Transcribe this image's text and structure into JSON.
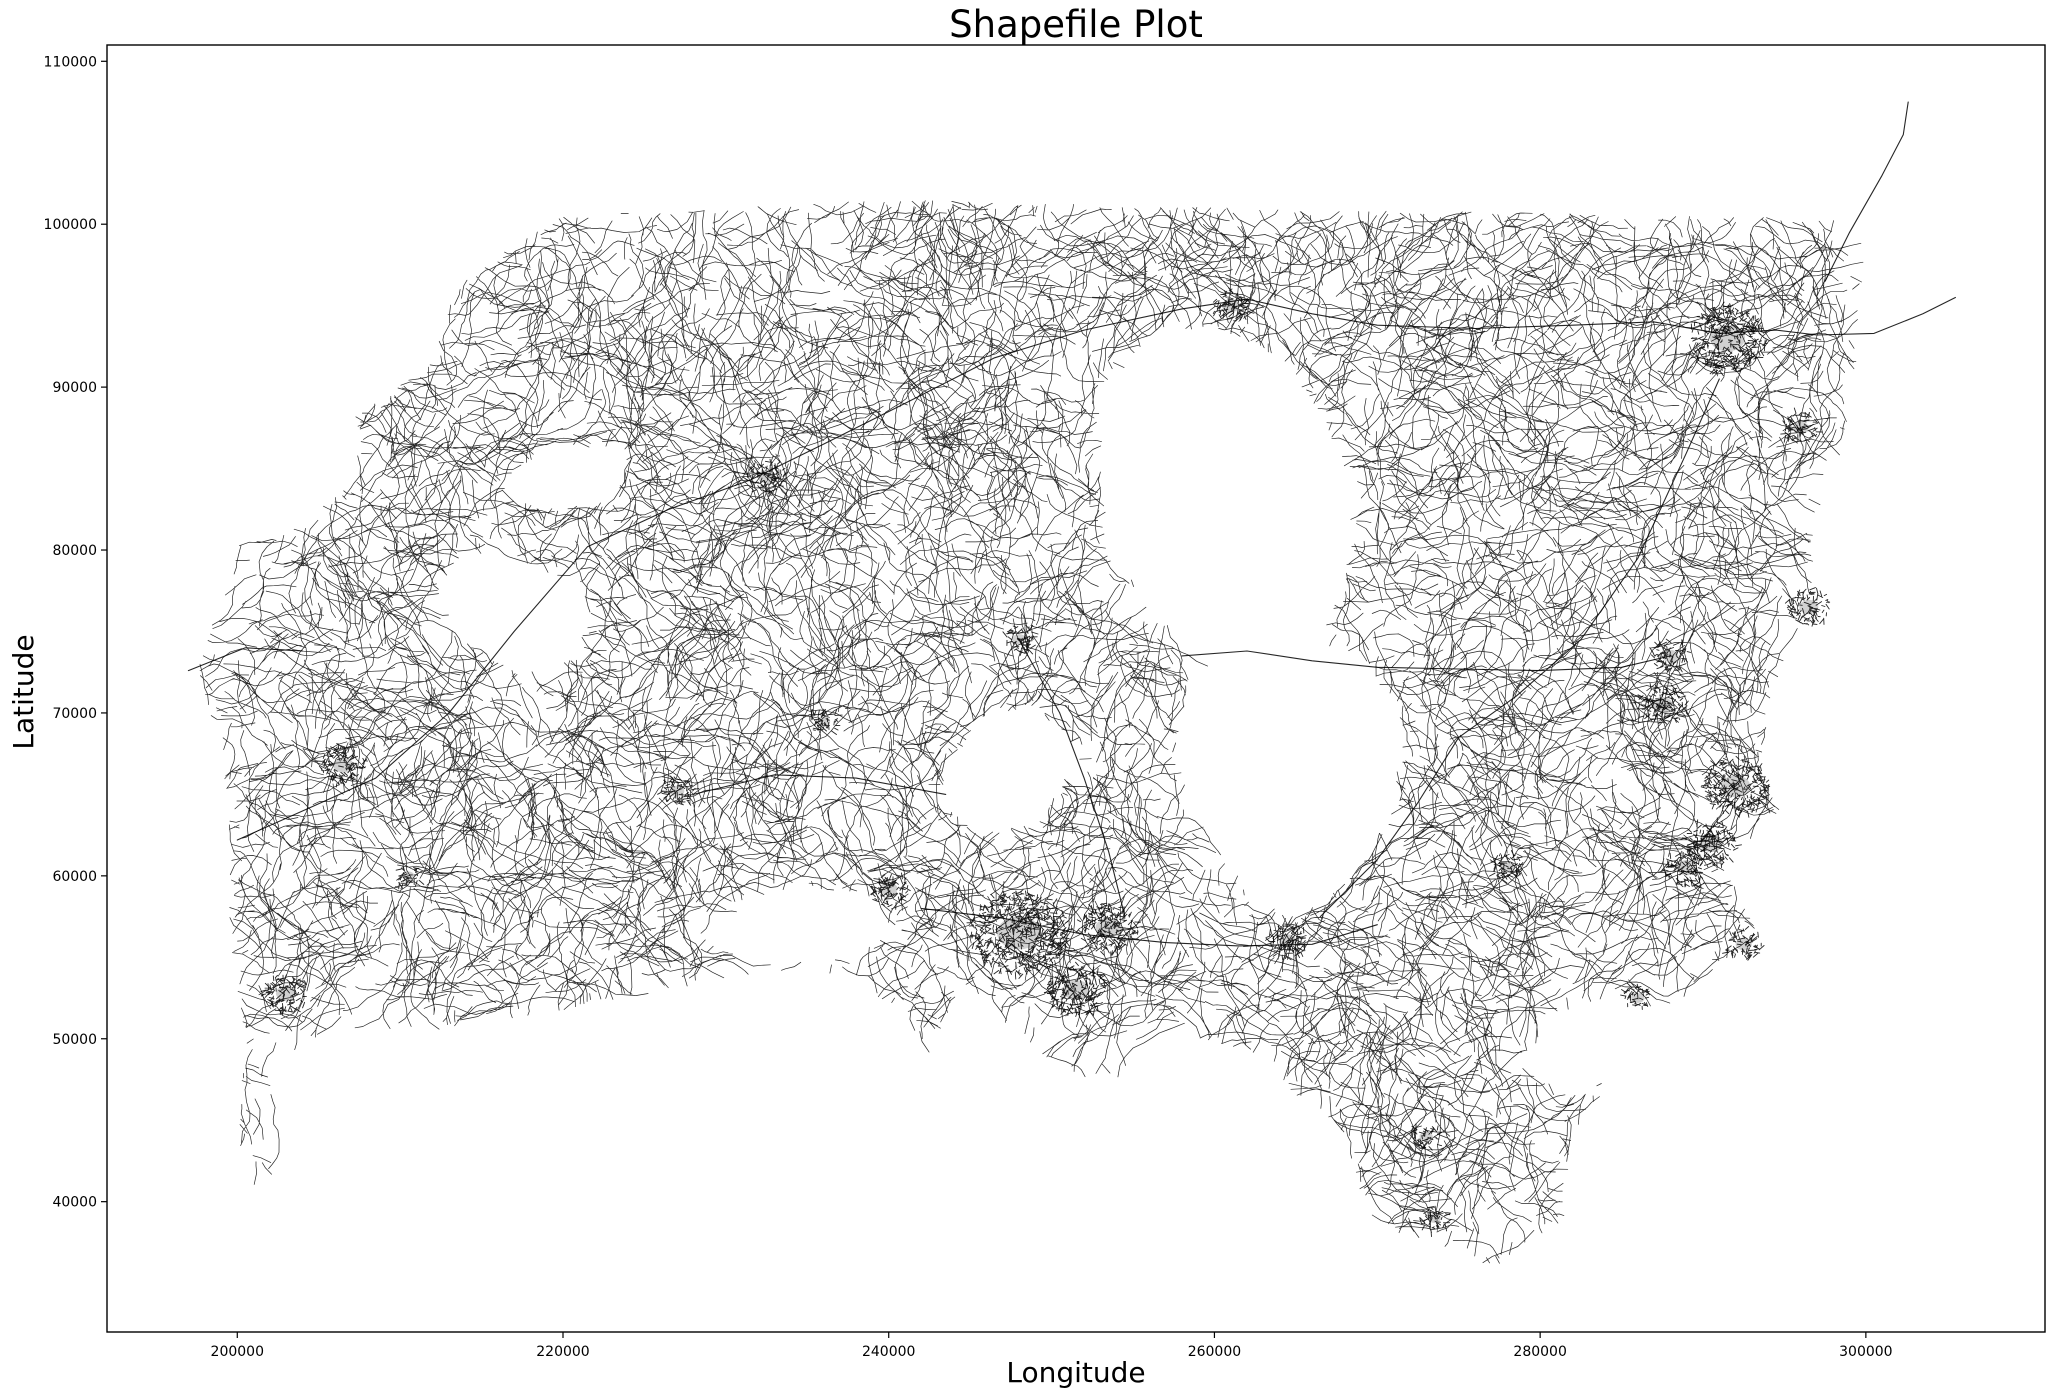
{
  "chart_data": {
    "type": "map",
    "title": "Shapefile Plot",
    "xlabel": "Longitude",
    "ylabel": "Latitude",
    "xlim": [
      192000,
      311000
    ],
    "ylim": [
      32000,
      111000
    ],
    "xticks": [
      200000,
      220000,
      240000,
      260000,
      280000,
      300000
    ],
    "yticks": [
      40000,
      50000,
      60000,
      70000,
      80000,
      90000,
      100000,
      110000
    ],
    "xtick_labels": [
      "200000",
      "220000",
      "240000",
      "260000",
      "280000",
      "300000"
    ],
    "ytick_labels": [
      "40000",
      "50000",
      "60000",
      "70000",
      "80000",
      "90000",
      "100000",
      "110000"
    ],
    "grid": false,
    "line_color": "#000000",
    "background": "#ffffff",
    "features": "road network line geometries",
    "urban_clusters": [
      {
        "x": 248000,
        "y": 56500,
        "size": 3000
      },
      {
        "x": 291500,
        "y": 93000,
        "size": 2400
      },
      {
        "x": 292000,
        "y": 65500,
        "size": 2000
      },
      {
        "x": 290500,
        "y": 62000,
        "size": 1600
      },
      {
        "x": 289000,
        "y": 60500,
        "size": 1400
      },
      {
        "x": 287500,
        "y": 70500,
        "size": 1400
      },
      {
        "x": 206500,
        "y": 66800,
        "size": 1400
      },
      {
        "x": 203000,
        "y": 52800,
        "size": 1400
      },
      {
        "x": 232500,
        "y": 84500,
        "size": 1200
      },
      {
        "x": 253500,
        "y": 56800,
        "size": 1800
      },
      {
        "x": 251500,
        "y": 53000,
        "size": 1800
      },
      {
        "x": 264500,
        "y": 56000,
        "size": 1200
      },
      {
        "x": 261000,
        "y": 95000,
        "size": 1200
      },
      {
        "x": 240000,
        "y": 59200,
        "size": 1200
      },
      {
        "x": 227000,
        "y": 65200,
        "size": 1000
      },
      {
        "x": 292500,
        "y": 55800,
        "size": 1100
      },
      {
        "x": 296500,
        "y": 76500,
        "size": 1300
      },
      {
        "x": 288000,
        "y": 73500,
        "size": 1100
      },
      {
        "x": 296000,
        "y": 87500,
        "size": 1100
      },
      {
        "x": 278000,
        "y": 60500,
        "size": 1000
      },
      {
        "x": 273500,
        "y": 39000,
        "size": 900
      },
      {
        "x": 248000,
        "y": 74500,
        "size": 1000
      },
      {
        "x": 236000,
        "y": 69500,
        "size": 900
      },
      {
        "x": 286000,
        "y": 52500,
        "size": 900
      },
      {
        "x": 273000,
        "y": 44000,
        "size": 900
      },
      {
        "x": 210500,
        "y": 60000,
        "size": 800
      }
    ]
  }
}
